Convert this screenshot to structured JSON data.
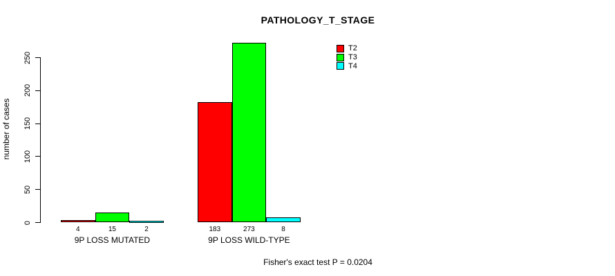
{
  "title": "PATHOLOGY_T_STAGE",
  "ylabel": "number of cases",
  "footnote": "Fisher's exact test P = 0.0204",
  "chart_data": {
    "type": "bar",
    "title": "PATHOLOGY_T_STAGE",
    "xlabel": "",
    "ylabel": "number of cases",
    "categories": [
      "9P LOSS MUTATED",
      "9P LOSS WILD-TYPE"
    ],
    "series": [
      {
        "name": "T2",
        "color": "#ff0000",
        "values": [
          4,
          183
        ]
      },
      {
        "name": "T3",
        "color": "#00ff00",
        "values": [
          15,
          273
        ]
      },
      {
        "name": "T4",
        "color": "#00ffff",
        "values": [
          2,
          8
        ]
      }
    ],
    "yticks": [
      0,
      50,
      100,
      150,
      200,
      250
    ],
    "ylim": [
      0,
      250
    ],
    "bar_value_labels": true,
    "grid": false,
    "legend_position": "top-right",
    "annotation": "Fisher's exact test P = 0.0204"
  }
}
